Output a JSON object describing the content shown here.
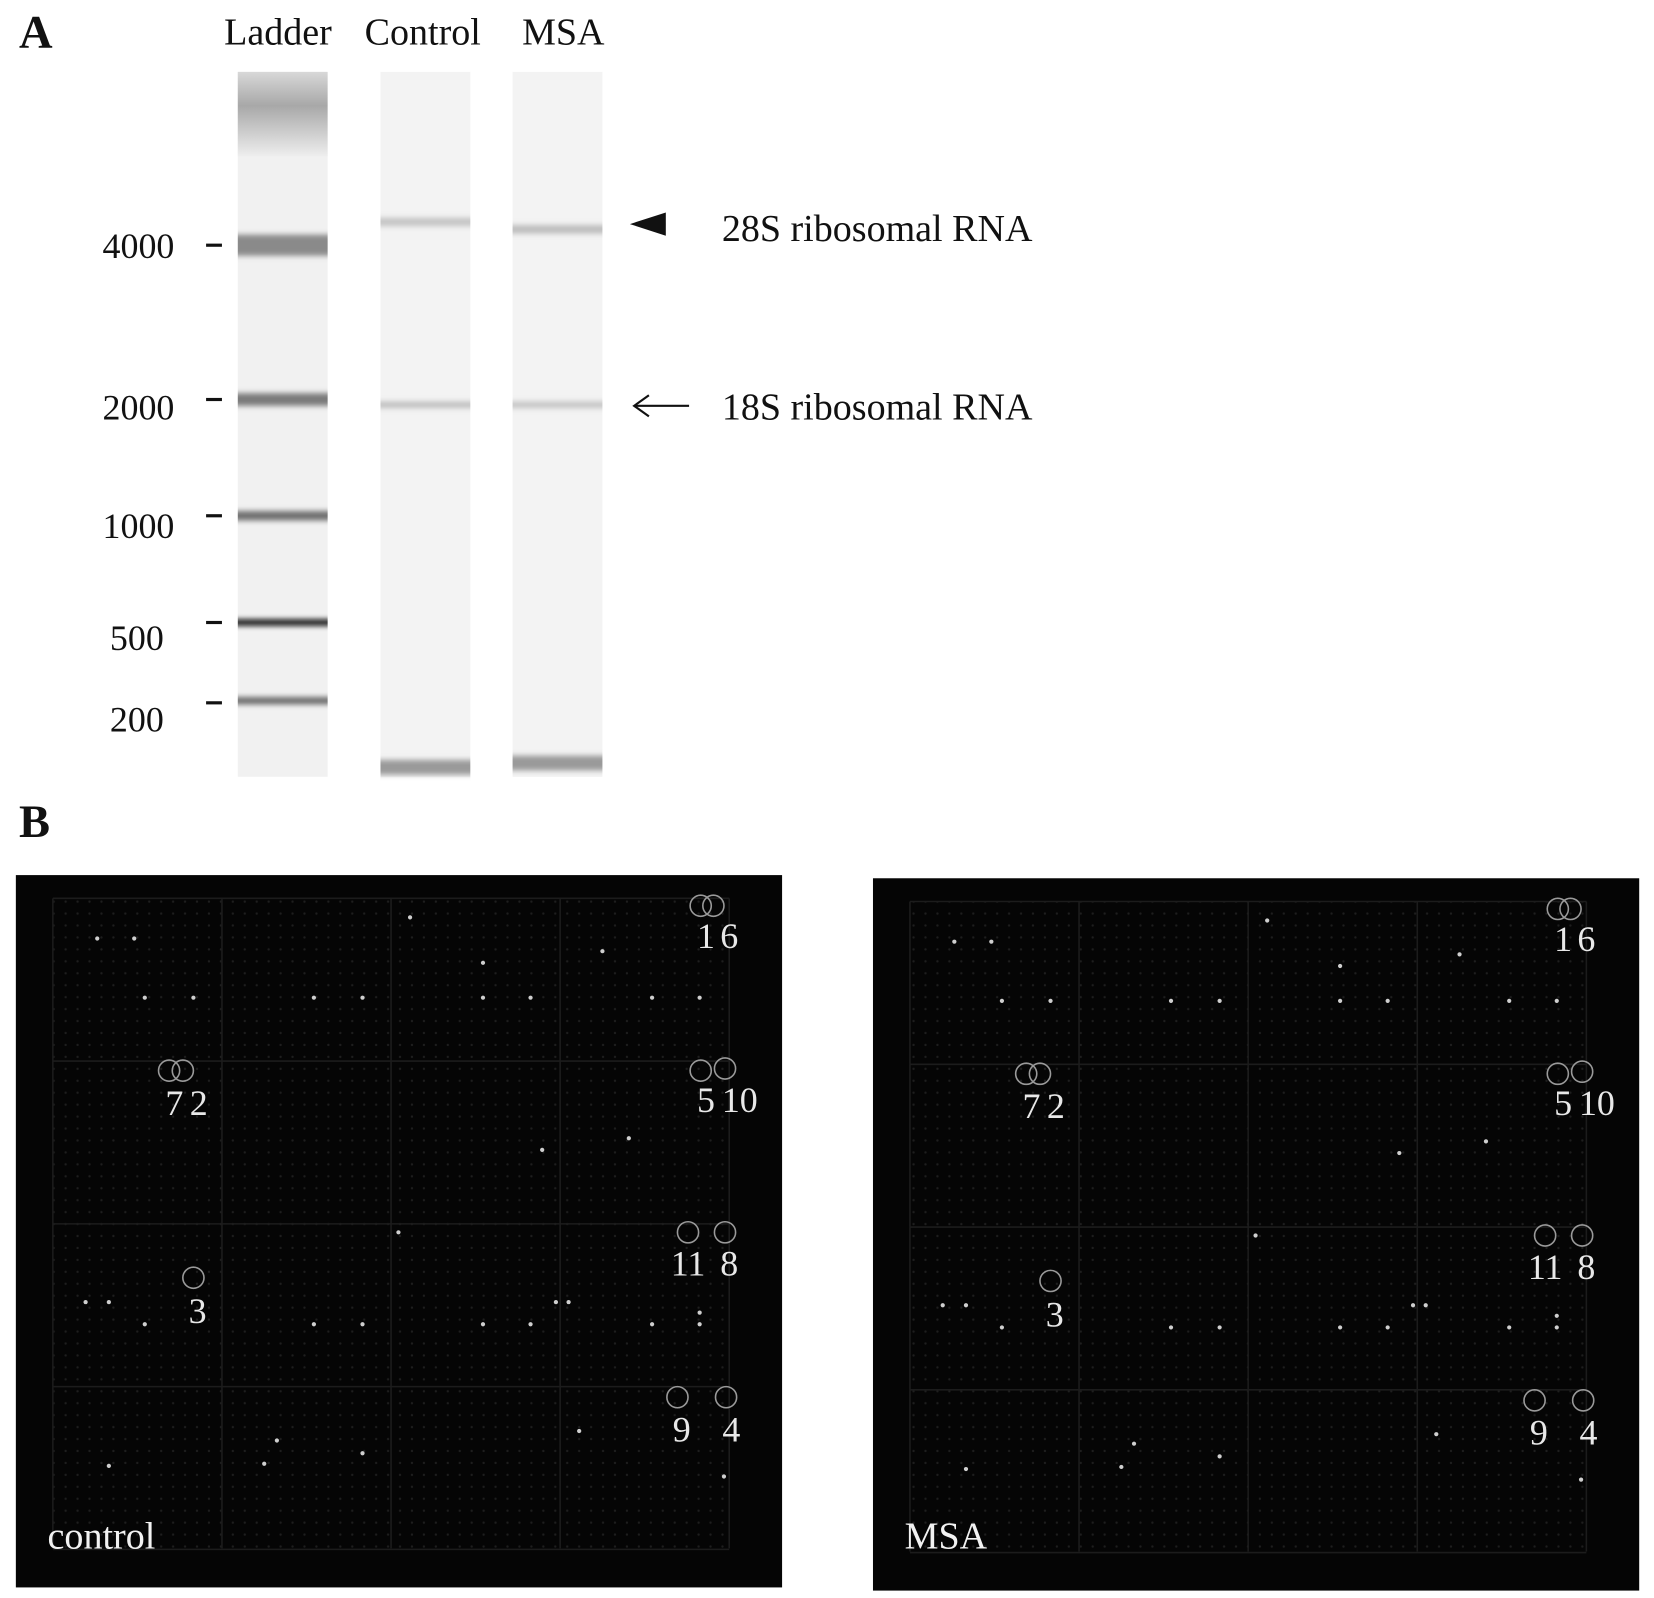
{
  "panel_a": {
    "label": "A",
    "lanes": [
      "Ladder",
      "Control",
      "MSA"
    ],
    "size_markers": [
      4000,
      2000,
      1000,
      500,
      200
    ],
    "annotations": [
      "28S ribosomal RNA",
      "18S ribosomal RNA"
    ]
  },
  "panel_b": {
    "label": "B",
    "arrays": [
      "control",
      "MSA"
    ],
    "spot_labels": [
      "1",
      "6",
      "7",
      "2",
      "5",
      "10",
      "11",
      "8",
      "3",
      "9",
      "4"
    ]
  }
}
